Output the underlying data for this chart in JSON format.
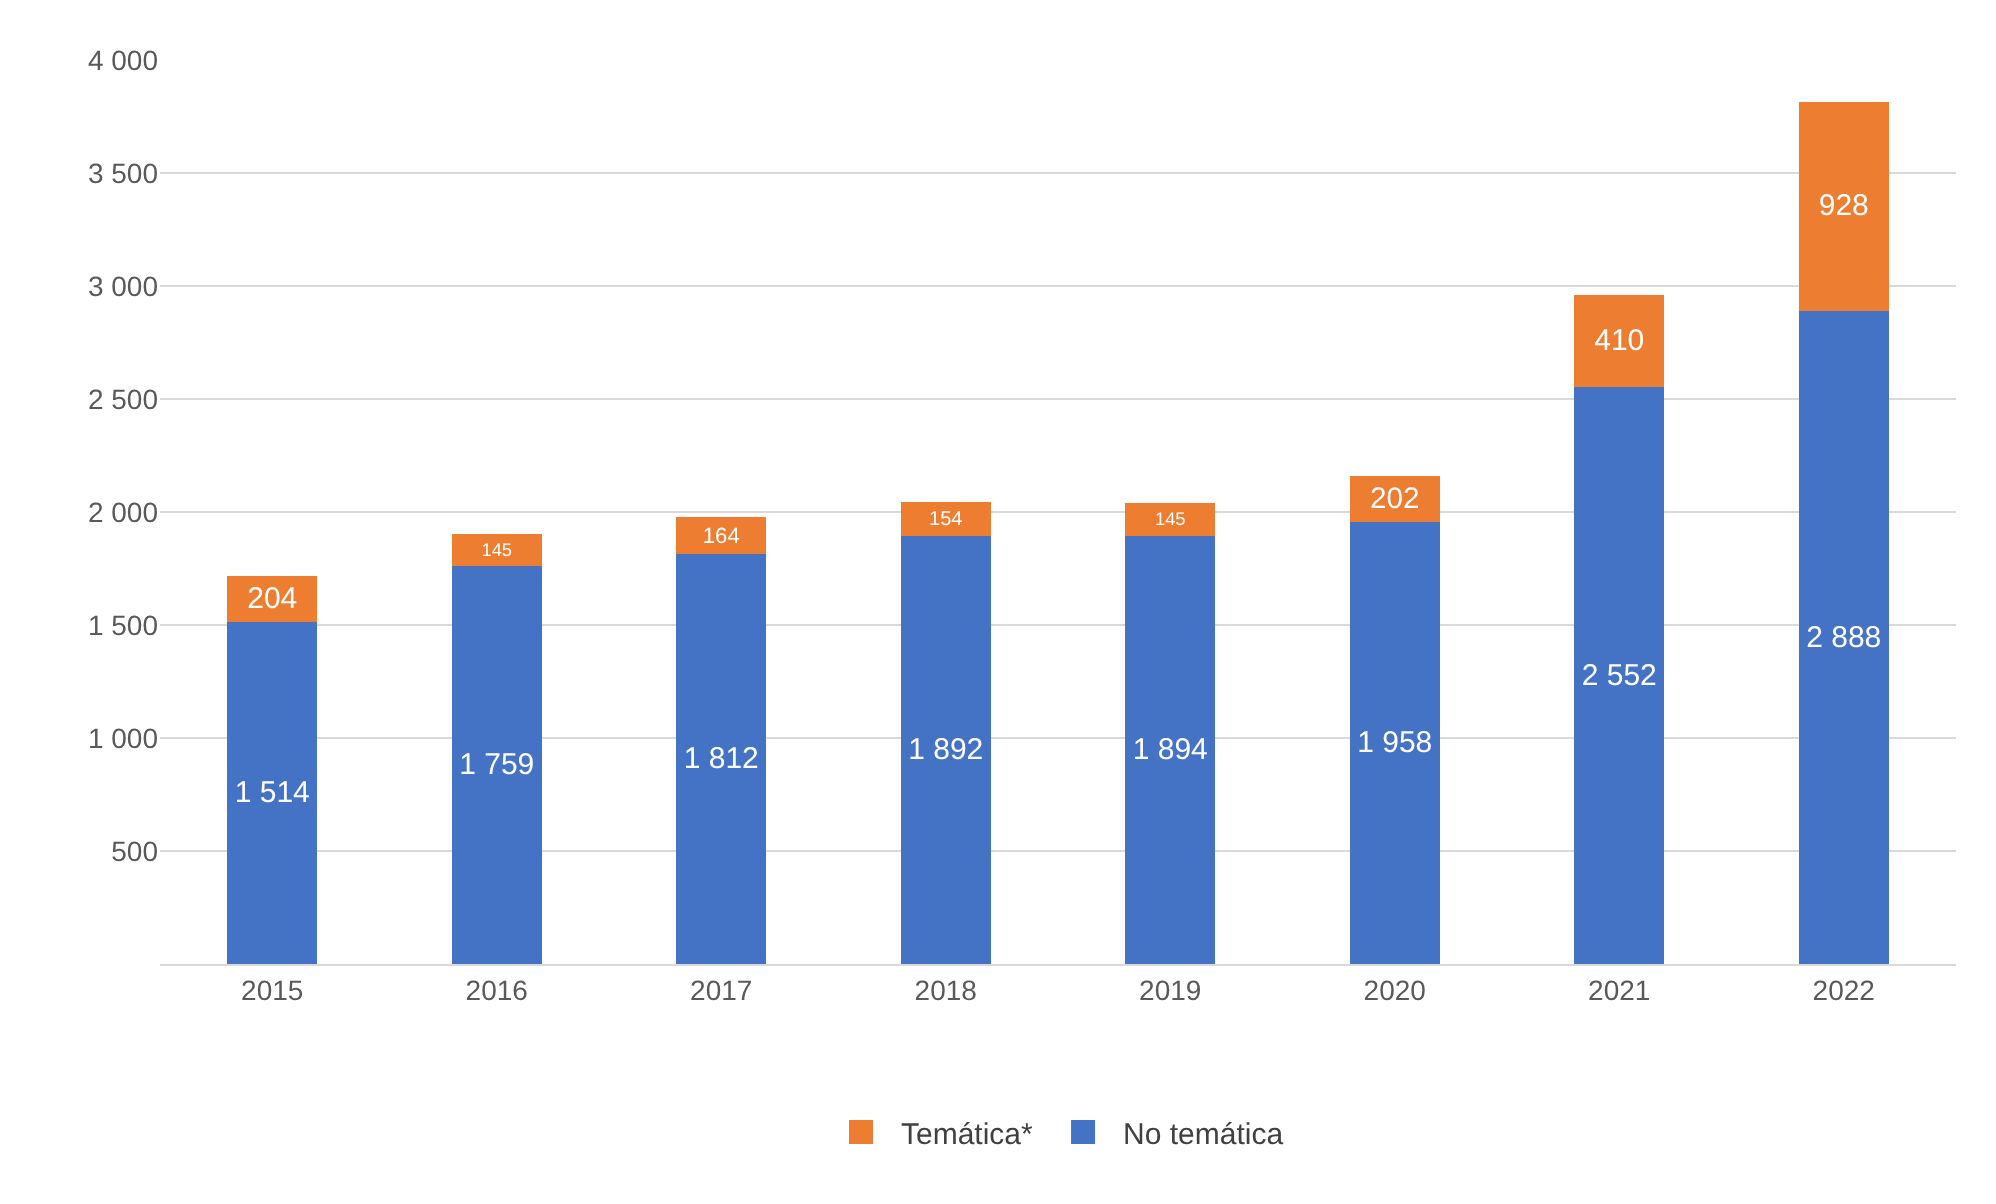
{
  "chart_data": {
    "type": "bar",
    "stacked": true,
    "categories": [
      "2015",
      "2016",
      "2017",
      "2018",
      "2019",
      "2020",
      "2021",
      "2022"
    ],
    "series": [
      {
        "name": "No temática",
        "color": "#4472c4",
        "values": [
          1514,
          1759,
          1812,
          1892,
          1894,
          1958,
          2552,
          2888
        ],
        "value_labels": [
          "1 514",
          "1 759",
          "1 812",
          "1 892",
          "1 894",
          "1 958",
          "2 552",
          "2 888"
        ]
      },
      {
        "name": "Temática*",
        "color": "#ed7d31",
        "values": [
          204,
          145,
          164,
          154,
          145,
          202,
          410,
          928
        ],
        "value_labels": [
          "204",
          "145",
          "164",
          "154",
          "145",
          "202",
          "410",
          "928"
        ]
      }
    ],
    "ylim": [
      0,
      4000
    ],
    "yticks": [
      {
        "value": 0,
        "label": null
      },
      500,
      {
        "value": 1000,
        "label": "1 000"
      },
      {
        "value": 1500,
        "label": "1 500"
      },
      {
        "value": 2000,
        "label": "2 000"
      },
      {
        "value": 2500,
        "label": "2 500"
      },
      {
        "value": 3000,
        "label": "3 000"
      },
      {
        "value": 3500,
        "label": "3 500"
      },
      {
        "value": 4000,
        "label": "4 000"
      }
    ],
    "grid": "y",
    "legend": "bottom"
  }
}
